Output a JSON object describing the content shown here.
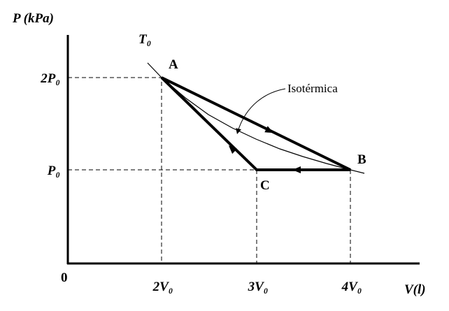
{
  "axes": {
    "y_label": "P (kPa)",
    "x_label": "V(l)",
    "origin": "0",
    "y_ticks": [
      "2P₀",
      "P₀"
    ],
    "x_ticks": [
      "2V₀",
      "3V₀",
      "4V₀"
    ]
  },
  "points": [
    "A",
    "B",
    "C"
  ],
  "curve": {
    "label": "T₀",
    "annotation": "Isotérmica"
  }
}
